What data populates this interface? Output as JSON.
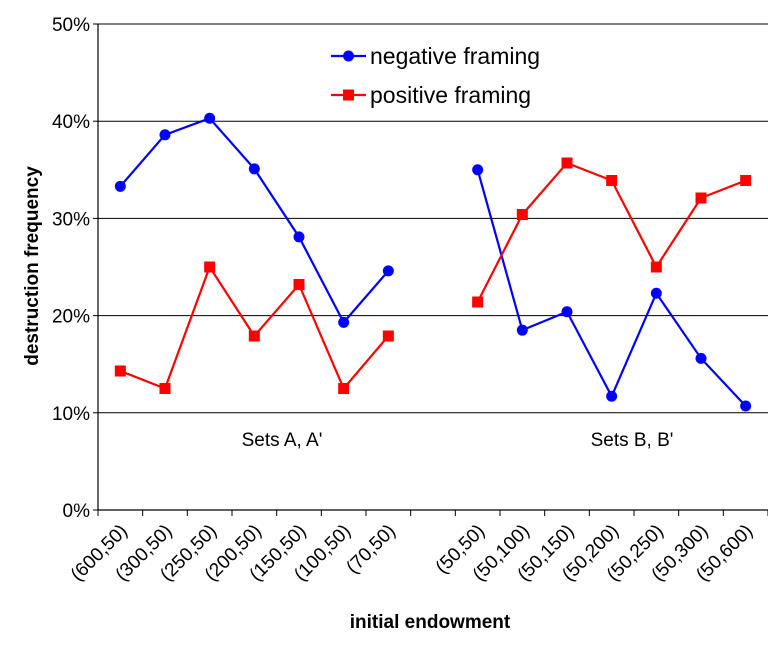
{
  "chart_data": {
    "type": "line",
    "title": "",
    "xlabel": "initial endowment",
    "ylabel": "destruction frequency",
    "ylim": [
      0,
      0.5
    ],
    "y_ticks": [
      "0%",
      "10%",
      "20%",
      "30%",
      "40%",
      "50%"
    ],
    "y_tick_values": [
      0,
      0.1,
      0.2,
      0.3,
      0.4,
      0.5
    ],
    "grid": "horizontal",
    "legend_placement": "top-center",
    "categories": [
      "(600,50)",
      "(300,50)",
      "(250,50)",
      "(200,50)",
      "(150,50)",
      "(100,50)",
      "(70,50)",
      "",
      "(50,50)",
      "(50,100)",
      "(50,150)",
      "(50,200)",
      "(50,250)",
      "(50,300)",
      "(50,600)"
    ],
    "series": [
      {
        "name": "negative framing",
        "color": "#0000ff",
        "marker": "circle",
        "values": [
          0.333,
          0.386,
          0.403,
          0.351,
          0.281,
          0.193,
          0.246,
          null,
          0.35,
          0.185,
          0.204,
          0.117,
          0.223,
          0.156,
          0.107
        ]
      },
      {
        "name": "positive framing",
        "color": "#ff0000",
        "marker": "square",
        "values": [
          0.143,
          0.125,
          0.25,
          0.179,
          0.232,
          0.125,
          0.179,
          null,
          0.214,
          0.304,
          0.357,
          0.339,
          0.25,
          0.321,
          0.339
        ]
      }
    ],
    "annotations": [
      "Sets A, A'",
      "Sets B, B'"
    ]
  }
}
